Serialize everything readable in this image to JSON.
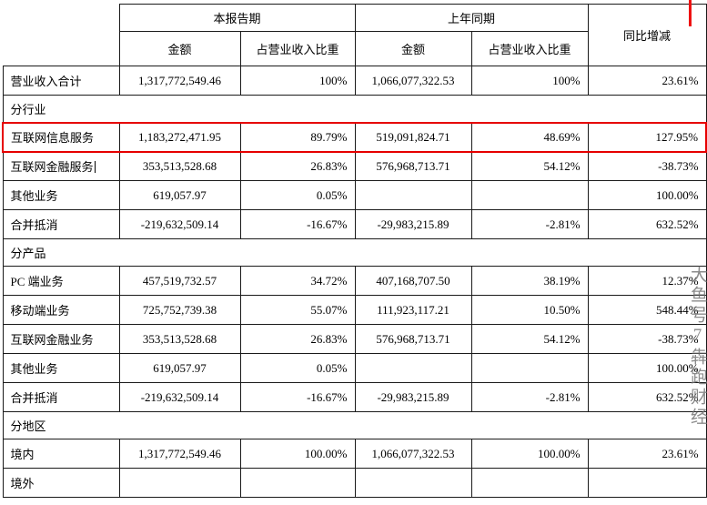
{
  "table": {
    "headers": {
      "current_period": "本报告期",
      "prior_period": "上年同期",
      "yoy_change": "同比增减",
      "amount": "金额",
      "pct_revenue": "占营业收入比重"
    },
    "rows": [
      {
        "type": "data",
        "label": "营业收入合计",
        "cur_amount": "1,317,772,549.46",
        "cur_pct": "100%",
        "prior_amount": "1,066,077,322.53",
        "prior_pct": "100%",
        "yoy": "23.61%"
      },
      {
        "type": "section",
        "label": "分行业"
      },
      {
        "type": "data",
        "label": "互联网信息服务",
        "cur_amount": "1,183,272,471.95",
        "cur_pct": "89.79%",
        "prior_amount": "519,091,824.71",
        "prior_pct": "48.69%",
        "yoy": "127.95%",
        "highlight": true
      },
      {
        "type": "data",
        "label": "互联网金融服务",
        "cur_amount": "353,513,528.68",
        "cur_pct": "26.83%",
        "prior_amount": "576,968,713.71",
        "prior_pct": "54.12%",
        "yoy": "-38.73%",
        "caret": true
      },
      {
        "type": "data",
        "label": "其他业务",
        "cur_amount": "619,057.97",
        "cur_pct": "0.05%",
        "prior_amount": "",
        "prior_pct": "",
        "yoy": "100.00%"
      },
      {
        "type": "data",
        "label": "合并抵消",
        "cur_amount": "-219,632,509.14",
        "cur_pct": "-16.67%",
        "prior_amount": "-29,983,215.89",
        "prior_pct": "-2.81%",
        "yoy": "632.52%"
      },
      {
        "type": "section",
        "label": "分产品"
      },
      {
        "type": "data",
        "label": "PC 端业务",
        "cur_amount": "457,519,732.57",
        "cur_pct": "34.72%",
        "prior_amount": "407,168,707.50",
        "prior_pct": "38.19%",
        "yoy": "12.37%"
      },
      {
        "type": "data",
        "label": "移动端业务",
        "cur_amount": "725,752,739.38",
        "cur_pct": "55.07%",
        "prior_amount": "111,923,117.21",
        "prior_pct": "10.50%",
        "yoy": "548.44%"
      },
      {
        "type": "data",
        "label": "互联网金融业务",
        "cur_amount": "353,513,528.68",
        "cur_pct": "26.83%",
        "prior_amount": "576,968,713.71",
        "prior_pct": "54.12%",
        "yoy": "-38.73%"
      },
      {
        "type": "data",
        "label": "其他业务",
        "cur_amount": "619,057.97",
        "cur_pct": "0.05%",
        "prior_amount": "",
        "prior_pct": "",
        "yoy": "100.00%"
      },
      {
        "type": "data",
        "label": "合并抵消",
        "cur_amount": "-219,632,509.14",
        "cur_pct": "-16.67%",
        "prior_amount": "-29,983,215.89",
        "prior_pct": "-2.81%",
        "yoy": "632.52%"
      },
      {
        "type": "section",
        "label": "分地区"
      },
      {
        "type": "data",
        "label": "境内",
        "cur_amount": "1,317,772,549.46",
        "cur_pct": "100.00%",
        "prior_amount": "1,066,077,322.53",
        "prior_pct": "100.00%",
        "yoy": "23.61%"
      },
      {
        "type": "data",
        "label": "境外",
        "cur_amount": "",
        "cur_pct": "",
        "prior_amount": "",
        "prior_pct": "",
        "yoy": ""
      }
    ],
    "annotations": {
      "highlight_color": "#e60000",
      "watermark": "大鱼号7犇跑财经"
    }
  }
}
